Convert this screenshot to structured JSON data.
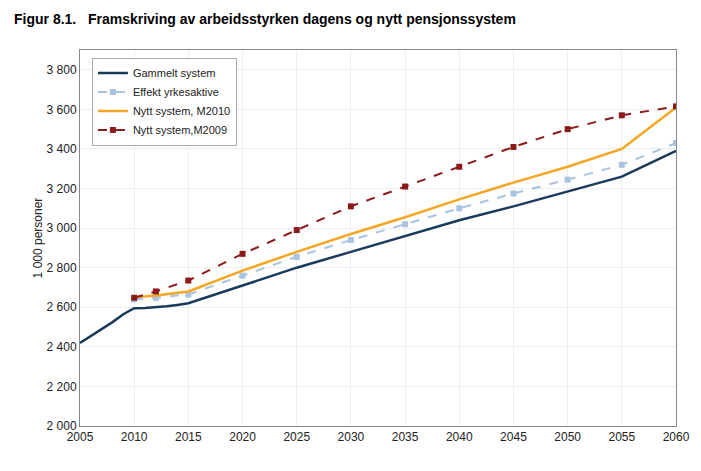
{
  "chart_data": {
    "type": "line",
    "title": "Figur 8.1.",
    "subtitle": "Framskriving av arbeidsstyrken dagens og nytt pensjonssystem",
    "ylabel": "1 000 personer",
    "xlim": [
      2005,
      2060
    ],
    "ylim": [
      2000,
      3900
    ],
    "xticks": [
      2005,
      2010,
      2015,
      2020,
      2025,
      2030,
      2035,
      2040,
      2045,
      2050,
      2055,
      2060
    ],
    "yticks": [
      {
        "value": 2000,
        "label": "2 000"
      },
      {
        "value": 2200,
        "label": "2 200"
      },
      {
        "value": 2400,
        "label": "2 400"
      },
      {
        "value": 2600,
        "label": "2 600"
      },
      {
        "value": 2800,
        "label": "2 800"
      },
      {
        "value": 3000,
        "label": "3 000"
      },
      {
        "value": 3200,
        "label": "3 200"
      },
      {
        "value": 3400,
        "label": "3 400"
      },
      {
        "value": 3600,
        "label": "3 600"
      },
      {
        "value": 3800,
        "label": "3 800"
      }
    ],
    "grid": true,
    "legend": "upper left",
    "series": [
      {
        "name": "Gammelt system",
        "color": "#1a3a5c",
        "line_style": "solid",
        "x": [
          2005,
          2006,
          2007,
          2008,
          2009,
          2010,
          2011,
          2012,
          2013,
          2014,
          2015,
          2020,
          2025,
          2030,
          2035,
          2040,
          2045,
          2050,
          2055,
          2060
        ],
        "values": [
          2420,
          2455,
          2490,
          2525,
          2565,
          2595,
          2596,
          2600,
          2605,
          2612,
          2620,
          2710,
          2800,
          2880,
          2960,
          3040,
          3110,
          3185,
          3260,
          3390
        ]
      },
      {
        "name": "Effekt yrkesaktive",
        "color": "#a8c4e0",
        "line_style": "dashed",
        "marker": "square",
        "x": [
          2010,
          2012,
          2015,
          2020,
          2025,
          2030,
          2035,
          2040,
          2045,
          2050,
          2055,
          2060
        ],
        "values": [
          2640,
          2648,
          2665,
          2760,
          2855,
          2940,
          3020,
          3100,
          3175,
          3245,
          3320,
          3430
        ]
      },
      {
        "name": "Nytt system, M2010",
        "color": "#f5a623",
        "line_style": "solid",
        "x": [
          2010,
          2012,
          2015,
          2020,
          2025,
          2030,
          2035,
          2040,
          2045,
          2050,
          2055,
          2060
        ],
        "values": [
          2650,
          2660,
          2680,
          2785,
          2880,
          2970,
          3055,
          3145,
          3230,
          3310,
          3400,
          3610
        ]
      },
      {
        "name": "Nytt system,M2009",
        "color": "#8b1a1a",
        "line_style": "dashed",
        "marker": "square",
        "x": [
          2010,
          2012,
          2015,
          2020,
          2025,
          2030,
          2035,
          2040,
          2045,
          2050,
          2055,
          2060
        ],
        "values": [
          2648,
          2680,
          2735,
          2870,
          2990,
          3110,
          3210,
          3310,
          3410,
          3500,
          3570,
          3615
        ]
      }
    ]
  }
}
